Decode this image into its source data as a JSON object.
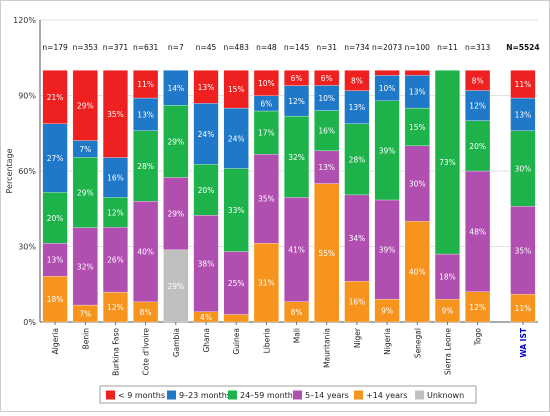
{
  "chart_data": {
    "type": "bar",
    "stacked": true,
    "percent_stacked": true,
    "ylabel": "Percentage",
    "ylim": [
      0,
      120
    ],
    "yticks": [
      "0%",
      "30%",
      "60%",
      "90%",
      "120%"
    ],
    "grid": true,
    "legend_position": "bottom",
    "categories": [
      "Algeria",
      "Benin",
      "Burkina Faso",
      "Cote d'Ivoire",
      "Gambia",
      "Ghana",
      "Guinea",
      "Liberia",
      "Mali",
      "Mauritania",
      "Niger",
      "Nigeria",
      "Senegal",
      "Sierra Leone",
      "Togo",
      "WA IST"
    ],
    "n_labels": [
      "n=179",
      "n=353",
      "n=371",
      "n=631",
      "n=7",
      "n=45",
      "n=483",
      "n=48",
      "n=145",
      "n=31",
      "n=734",
      "n=2073",
      "n=100",
      "n=11",
      "n=313",
      "N=5524"
    ],
    "highlight_category": "WA IST",
    "highlight_color": "#0000cc",
    "series": [
      {
        "name": "+14 years",
        "color": "#f7941d",
        "values": [
          18,
          7,
          12,
          8,
          0,
          4,
          3,
          31,
          8,
          55,
          16,
          9,
          40,
          9,
          12,
          11
        ],
        "labels": [
          "18%",
          "7%",
          "12%",
          "8%",
          "",
          "4%",
          "",
          "31%",
          "8%",
          "55%",
          "16%",
          "9%",
          "40%",
          "9%",
          "12%",
          "11%"
        ]
      },
      {
        "name": "Unknown",
        "color": "#c0c0c0",
        "values": [
          0,
          0,
          0,
          0,
          29,
          0,
          0,
          0,
          0,
          0,
          0,
          0,
          0,
          0,
          0,
          0
        ],
        "labels": [
          "",
          "",
          "",
          "",
          "29%",
          "",
          "",
          "",
          "",
          "",
          "",
          "",
          "",
          "",
          "",
          ""
        ]
      },
      {
        "name": "5–14 years",
        "color": "#b04fb0",
        "values": [
          13,
          32,
          26,
          40,
          29,
          38,
          25,
          35,
          41,
          13,
          34,
          39,
          30,
          18,
          48,
          35
        ],
        "labels": [
          "13%",
          "32%",
          "26%",
          "40%",
          "29%",
          "38%",
          "25%",
          "35%",
          "41%",
          "13%",
          "34%",
          "39%",
          "30%",
          "18%",
          "48%",
          "35%"
        ]
      },
      {
        "name": "24–59 months",
        "color": "#1db34a",
        "values": [
          20,
          29,
          12,
          28,
          29,
          20,
          33,
          17,
          32,
          16,
          28,
          39,
          15,
          73,
          20,
          30
        ],
        "labels": [
          "20%",
          "29%",
          "12%",
          "28%",
          "29%",
          "20%",
          "33%",
          "17%",
          "32%",
          "16%",
          "28%",
          "39%",
          "15%",
          "73%",
          "20%",
          "30%"
        ]
      },
      {
        "name": "9–23 months",
        "color": "#1f78c8",
        "values": [
          27,
          7,
          16,
          13,
          14,
          24,
          24,
          6,
          12,
          10,
          13,
          10,
          13,
          0,
          12,
          13
        ],
        "labels": [
          "27%",
          "7%",
          "16%",
          "13%",
          "14%",
          "24%",
          "24%",
          "6%",
          "12%",
          "10%",
          "13%",
          "10%",
          "13%",
          "",
          "12%",
          "13%"
        ]
      },
      {
        "name": "< 9 months",
        "color": "#ee2020",
        "values": [
          21,
          29,
          35,
          11,
          0,
          13,
          15,
          10,
          6,
          6,
          8,
          2,
          2,
          0,
          8,
          11
        ],
        "labels": [
          "21%",
          "29%",
          "35%",
          "11%",
          "",
          "13%",
          "15%",
          "10%",
          "6%",
          "6%",
          "8%",
          "",
          "",
          "",
          "8%",
          "11%"
        ]
      }
    ],
    "legend": [
      "< 9 months",
      "9–23 months",
      "24–59 months",
      "5–14 years",
      "+14 years",
      "Unknown"
    ]
  }
}
